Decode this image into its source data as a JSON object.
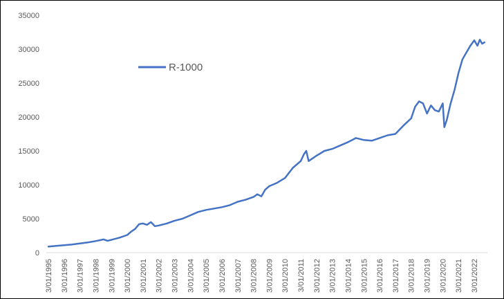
{
  "chart_data": {
    "type": "line",
    "title": "",
    "xlabel": "",
    "ylabel": "",
    "ylim": [
      0,
      35000
    ],
    "y_ticks": [
      "0",
      "5000",
      "10000",
      "15000",
      "20000",
      "25000",
      "30000",
      "35000"
    ],
    "x_ticks": [
      "3/01/1995",
      "3/01/1996",
      "3/01/1997",
      "3/01/1998",
      "3/01/1999",
      "3/01/2000",
      "3/01/2001",
      "3/01/2002",
      "3/01/2003",
      "3/01/2004",
      "3/01/2005",
      "3/01/2006",
      "3/01/2007",
      "3/01/2008",
      "3/01/2009",
      "3/01/2010",
      "3/01/2011",
      "3/01/2012",
      "3/01/2013",
      "3/01/2014",
      "3/01/2015",
      "3/01/2016",
      "3/01/2017",
      "3/01/2018",
      "3/01/2019",
      "3/01/2020",
      "3/01/2021",
      "3/01/2022"
    ],
    "grid": false,
    "legend_position": "top-left",
    "series": [
      {
        "name": "R-1000",
        "color": "#4472C4",
        "x": [
          1995.0,
          1995.5,
          1996.0,
          1996.5,
          1997.0,
          1997.5,
          1998.0,
          1998.5,
          1998.75,
          1999.0,
          1999.5,
          2000.0,
          2000.25,
          2000.5,
          2000.75,
          2001.0,
          2001.25,
          2001.5,
          2001.75,
          2002.0,
          2002.5,
          2003.0,
          2003.5,
          2004.0,
          2004.5,
          2005.0,
          2005.5,
          2006.0,
          2006.5,
          2007.0,
          2007.5,
          2008.0,
          2008.25,
          2008.5,
          2008.75,
          2009.0,
          2009.5,
          2010.0,
          2010.5,
          2011.0,
          2011.2,
          2011.35,
          2011.5,
          2012.0,
          2012.5,
          2013.0,
          2013.5,
          2014.0,
          2014.5,
          2015.0,
          2015.5,
          2016.0,
          2016.5,
          2017.0,
          2017.5,
          2018.0,
          2018.25,
          2018.5,
          2018.75,
          2019.0,
          2019.25,
          2019.5,
          2019.75,
          2020.0,
          2020.1,
          2020.25,
          2020.5,
          2020.75,
          2021.0,
          2021.25,
          2021.5,
          2021.75,
          2022.0,
          2022.2,
          2022.35,
          2022.5,
          2022.65
        ],
        "values": [
          900,
          1000,
          1100,
          1200,
          1350,
          1500,
          1700,
          1950,
          1750,
          1900,
          2200,
          2600,
          3100,
          3500,
          4200,
          4300,
          4100,
          4500,
          3900,
          4000,
          4300,
          4700,
          5000,
          5500,
          6000,
          6300,
          6500,
          6700,
          7000,
          7500,
          7800,
          8200,
          8600,
          8300,
          9300,
          9800,
          10300,
          11000,
          12500,
          13500,
          14500,
          15000,
          13500,
          14300,
          15000,
          15300,
          15800,
          16300,
          16900,
          16600,
          16500,
          16900,
          17300,
          17500,
          18700,
          19800,
          21500,
          22300,
          22000,
          20500,
          21700,
          21000,
          20800,
          22000,
          18500,
          19500,
          22000,
          24000,
          26500,
          28500,
          29500,
          30500,
          31300,
          30500,
          31400,
          30800,
          31000
        ]
      }
    ]
  }
}
